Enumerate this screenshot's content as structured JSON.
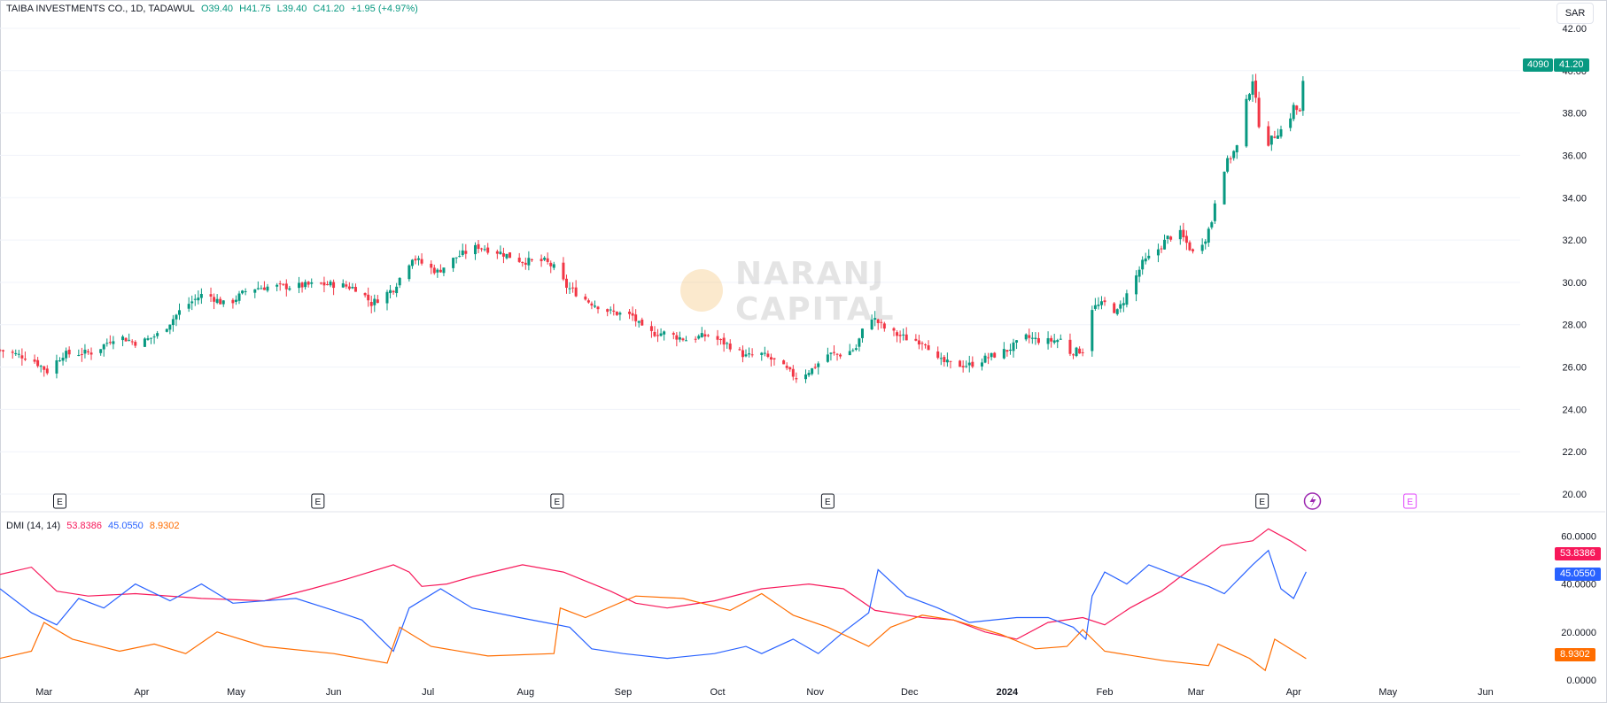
{
  "header": {
    "symbol": "TAIBA INVESTMENTS CO., 1D, TADAWUL",
    "open": "O39.40",
    "high": "H41.75",
    "low": "L39.40",
    "close": "C41.20",
    "change": "+1.95 (+4.97%)"
  },
  "currency_button": "SAR",
  "price_badge": {
    "ticker": "4090",
    "price": "41.20"
  },
  "indicator": {
    "label": "DMI (14, 14)",
    "adx": "53.8386",
    "plus_di": "45.0550",
    "minus_di": "8.9302"
  },
  "watermark": {
    "line1": "NARANJ",
    "line2": "CAPITAL"
  },
  "event_markers": [
    "E",
    "E",
    "E",
    "E",
    "E"
  ],
  "colors": {
    "up": "#089981",
    "down": "#f23645",
    "adx": "#f7185a",
    "plus_di": "#2962ff",
    "minus_di": "#ff6d00",
    "grid": "#f0f3fa",
    "axis_text": "#131722",
    "event_pink": "#e040fb",
    "lightning": "#9c27b0"
  },
  "chart_data": [
    {
      "type": "candlestick",
      "title": "TAIBA INVESTMENTS CO., 1D, TADAWUL",
      "ylim": [
        19.5,
        42.5
      ],
      "yticks": [
        "42.00",
        "40.00",
        "38.00",
        "36.00",
        "34.00",
        "32.00",
        "30.00",
        "28.00",
        "26.00",
        "24.00",
        "22.00",
        "20.00"
      ],
      "xticks": [
        "Mar",
        "Apr",
        "May",
        "Jun",
        "Jul",
        "Aug",
        "Sep",
        "Oct",
        "Nov",
        "Dec",
        "2024",
        "Feb",
        "Mar",
        "Apr",
        "May",
        "Jun"
      ],
      "close_path": [
        [
          "2023-02-15",
          26.8
        ],
        [
          "2023-02-25",
          26.4
        ],
        [
          "2023-03-02",
          25.8
        ],
        [
          "2023-03-07",
          26.6
        ],
        [
          "2023-03-17",
          26.7
        ],
        [
          "2023-03-24",
          27.5
        ],
        [
          "2023-03-31",
          27.1
        ],
        [
          "2023-04-07",
          27.6
        ],
        [
          "2023-04-14",
          28.8
        ],
        [
          "2023-04-21",
          29.5
        ],
        [
          "2023-04-28",
          28.9
        ],
        [
          "2023-05-05",
          29.7
        ],
        [
          "2023-05-12",
          29.8
        ],
        [
          "2023-05-19",
          29.8
        ],
        [
          "2023-05-26",
          29.9
        ],
        [
          "2023-06-02",
          29.9
        ],
        [
          "2023-06-09",
          29.7
        ],
        [
          "2023-06-13",
          29.0
        ],
        [
          "2023-06-20",
          29.7
        ],
        [
          "2023-06-26",
          31.2
        ],
        [
          "2023-06-30",
          30.8
        ],
        [
          "2023-07-04",
          30.5
        ],
        [
          "2023-07-10",
          31.2
        ],
        [
          "2023-07-17",
          31.7
        ],
        [
          "2023-07-24",
          31.4
        ],
        [
          "2023-07-31",
          31.0
        ],
        [
          "2023-08-07",
          31.0
        ],
        [
          "2023-08-10",
          30.7
        ],
        [
          "2023-08-14",
          29.8
        ],
        [
          "2023-08-21",
          29.1
        ],
        [
          "2023-08-28",
          28.6
        ],
        [
          "2023-09-04",
          28.4
        ],
        [
          "2023-09-08",
          27.6
        ],
        [
          "2023-09-14",
          27.6
        ],
        [
          "2023-09-21",
          27.3
        ],
        [
          "2023-09-28",
          27.5
        ],
        [
          "2023-10-05",
          27.0
        ],
        [
          "2023-10-10",
          26.5
        ],
        [
          "2023-10-15",
          26.6
        ],
        [
          "2023-10-20",
          26.2
        ],
        [
          "2023-10-26",
          25.5
        ],
        [
          "2023-10-31",
          25.9
        ],
        [
          "2023-11-05",
          26.6
        ],
        [
          "2023-11-10",
          26.6
        ],
        [
          "2023-11-14",
          26.9
        ],
        [
          "2023-11-18",
          28.5
        ],
        [
          "2023-11-24",
          27.7
        ],
        [
          "2023-12-01",
          27.3
        ],
        [
          "2023-12-06",
          27.2
        ],
        [
          "2023-12-10",
          26.3
        ],
        [
          "2023-12-15",
          26.1
        ],
        [
          "2023-12-20",
          26.1
        ],
        [
          "2023-12-25",
          26.4
        ],
        [
          "2024-01-01",
          26.8
        ],
        [
          "2024-01-07",
          27.4
        ],
        [
          "2024-01-13",
          27.2
        ],
        [
          "2024-01-18",
          27.3
        ],
        [
          "2024-01-21",
          26.7
        ],
        [
          "2024-01-25",
          26.8
        ],
        [
          "2024-01-28",
          28.8
        ],
        [
          "2024-02-01",
          29.0
        ],
        [
          "2024-02-05",
          28.6
        ],
        [
          "2024-02-09",
          29.7
        ],
        [
          "2024-02-13",
          30.9
        ],
        [
          "2024-02-17",
          31.4
        ],
        [
          "2024-02-21",
          32.1
        ],
        [
          "2024-02-25",
          32.3
        ],
        [
          "2024-02-29",
          31.4
        ],
        [
          "2024-03-04",
          32.1
        ],
        [
          "2024-03-06",
          32.9
        ],
        [
          "2024-03-08",
          34.8
        ],
        [
          "2024-03-11",
          35.7
        ],
        [
          "2024-03-14",
          36.4
        ],
        [
          "2024-03-17",
          38.5
        ],
        [
          "2024-03-19",
          39.6
        ],
        [
          "2024-03-21",
          37.5
        ],
        [
          "2024-03-24",
          36.6
        ],
        [
          "2024-03-27",
          37.1
        ],
        [
          "2024-03-30",
          37.4
        ],
        [
          "2024-04-01",
          38.3
        ],
        [
          "2024-04-03",
          38.0
        ],
        [
          "2024-04-04",
          39.4
        ],
        [
          "2024-04-05",
          41.2
        ]
      ],
      "last": {
        "open": 39.4,
        "high": 41.75,
        "low": 39.4,
        "close": 41.2
      }
    },
    {
      "type": "line",
      "title": "DMI (14, 14)",
      "ylim": [
        0,
        62
      ],
      "yticks": [
        "60.0000",
        "40.0000",
        "20.0000",
        "0.0000"
      ],
      "series": [
        {
          "name": "",
          "color": "#f7185a",
          "last": 53.8386,
          "points": [
            [
              "2023-02-15",
              44
            ],
            [
              "2023-02-25",
              47
            ],
            [
              "2023-03-05",
              37
            ],
            [
              "2023-03-15",
              35
            ],
            [
              "2023-03-30",
              36
            ],
            [
              "2023-04-20",
              34
            ],
            [
              "2023-05-10",
              33
            ],
            [
              "2023-05-25",
              38
            ],
            [
              "2023-06-05",
              42
            ],
            [
              "2023-06-20",
              48
            ],
            [
              "2023-06-25",
              45
            ],
            [
              "2023-06-29",
              39
            ],
            [
              "2023-07-07",
              40
            ],
            [
              "2023-07-15",
              43
            ],
            [
              "2023-07-31",
              48
            ],
            [
              "2023-08-13",
              45
            ],
            [
              "2023-08-28",
              37
            ],
            [
              "2023-09-05",
              32
            ],
            [
              "2023-09-15",
              30
            ],
            [
              "2023-09-30",
              33
            ],
            [
              "2023-10-15",
              38
            ],
            [
              "2023-10-30",
              40
            ],
            [
              "2023-11-10",
              38
            ],
            [
              "2023-11-20",
              29
            ],
            [
              "2023-12-05",
              26
            ],
            [
              "2023-12-15",
              25
            ],
            [
              "2023-12-25",
              20
            ],
            [
              "2024-01-04",
              17
            ],
            [
              "2024-01-14",
              24
            ],
            [
              "2024-01-25",
              26
            ],
            [
              "2024-02-01",
              23
            ],
            [
              "2024-02-09",
              30
            ],
            [
              "2024-02-19",
              37
            ],
            [
              "2024-02-29",
              47
            ],
            [
              "2024-03-09",
              56
            ],
            [
              "2024-03-19",
              58
            ],
            [
              "2024-03-24",
              63
            ],
            [
              "2024-03-31",
              58
            ],
            [
              "2024-04-05",
              53.8
            ]
          ]
        },
        {
          "name": "",
          "color": "#2962ff",
          "last": 45.055,
          "points": [
            [
              "2023-02-15",
              38
            ],
            [
              "2023-02-25",
              28
            ],
            [
              "2023-03-05",
              23
            ],
            [
              "2023-03-12",
              34
            ],
            [
              "2023-03-20",
              30
            ],
            [
              "2023-03-30",
              40
            ],
            [
              "2023-04-10",
              33
            ],
            [
              "2023-04-20",
              40
            ],
            [
              "2023-04-30",
              32
            ],
            [
              "2023-05-20",
              34
            ],
            [
              "2023-06-01",
              29
            ],
            [
              "2023-06-10",
              25
            ],
            [
              "2023-06-20",
              12
            ],
            [
              "2023-06-25",
              30
            ],
            [
              "2023-07-05",
              38
            ],
            [
              "2023-07-15",
              30
            ],
            [
              "2023-07-30",
              26
            ],
            [
              "2023-08-15",
              22
            ],
            [
              "2023-08-22",
              13
            ],
            [
              "2023-09-01",
              11
            ],
            [
              "2023-09-15",
              9
            ],
            [
              "2023-09-30",
              11
            ],
            [
              "2023-10-10",
              14
            ],
            [
              "2023-10-15",
              11
            ],
            [
              "2023-10-25",
              17
            ],
            [
              "2023-11-02",
              11
            ],
            [
              "2023-11-10",
              20
            ],
            [
              "2023-11-18",
              28
            ],
            [
              "2023-11-21",
              46
            ],
            [
              "2023-11-30",
              35
            ],
            [
              "2023-12-10",
              30
            ],
            [
              "2023-12-20",
              24
            ],
            [
              "2024-01-04",
              26
            ],
            [
              "2024-01-14",
              26
            ],
            [
              "2024-01-22",
              22
            ],
            [
              "2024-01-26",
              17
            ],
            [
              "2024-01-28",
              35
            ],
            [
              "2024-02-01",
              45
            ],
            [
              "2024-02-08",
              40
            ],
            [
              "2024-02-15",
              48
            ],
            [
              "2024-02-25",
              43
            ],
            [
              "2024-03-05",
              39
            ],
            [
              "2024-03-10",
              36
            ],
            [
              "2024-03-19",
              48
            ],
            [
              "2024-03-24",
              54
            ],
            [
              "2024-03-28",
              38
            ],
            [
              "2024-04-01",
              34
            ],
            [
              "2024-04-05",
              45.05
            ]
          ]
        },
        {
          "name": "",
          "color": "#ff6d00",
          "last": 8.9302,
          "points": [
            [
              "2023-02-15",
              9
            ],
            [
              "2023-02-25",
              12
            ],
            [
              "2023-03-01",
              24
            ],
            [
              "2023-03-10",
              17
            ],
            [
              "2023-03-25",
              12
            ],
            [
              "2023-04-05",
              15
            ],
            [
              "2023-04-15",
              11
            ],
            [
              "2023-04-25",
              20
            ],
            [
              "2023-05-10",
              14
            ],
            [
              "2023-06-01",
              11
            ],
            [
              "2023-06-18",
              7
            ],
            [
              "2023-06-22",
              22
            ],
            [
              "2023-07-02",
              14
            ],
            [
              "2023-07-20",
              10
            ],
            [
              "2023-08-10",
              11
            ],
            [
              "2023-08-12",
              30
            ],
            [
              "2023-08-20",
              26
            ],
            [
              "2023-09-05",
              35
            ],
            [
              "2023-09-20",
              34
            ],
            [
              "2023-10-05",
              29
            ],
            [
              "2023-10-15",
              36
            ],
            [
              "2023-10-25",
              27
            ],
            [
              "2023-11-05",
              22
            ],
            [
              "2023-11-18",
              14
            ],
            [
              "2023-11-25",
              22
            ],
            [
              "2023-12-05",
              27
            ],
            [
              "2023-12-15",
              25
            ],
            [
              "2023-12-30",
              19
            ],
            [
              "2024-01-10",
              13
            ],
            [
              "2024-01-20",
              14
            ],
            [
              "2024-01-25",
              21
            ],
            [
              "2024-02-01",
              12
            ],
            [
              "2024-02-20",
              8
            ],
            [
              "2024-03-05",
              6
            ],
            [
              "2024-03-08",
              15
            ],
            [
              "2024-03-18",
              9
            ],
            [
              "2024-03-23",
              4
            ],
            [
              "2024-03-26",
              17
            ],
            [
              "2024-04-05",
              8.9
            ]
          ]
        }
      ]
    }
  ]
}
